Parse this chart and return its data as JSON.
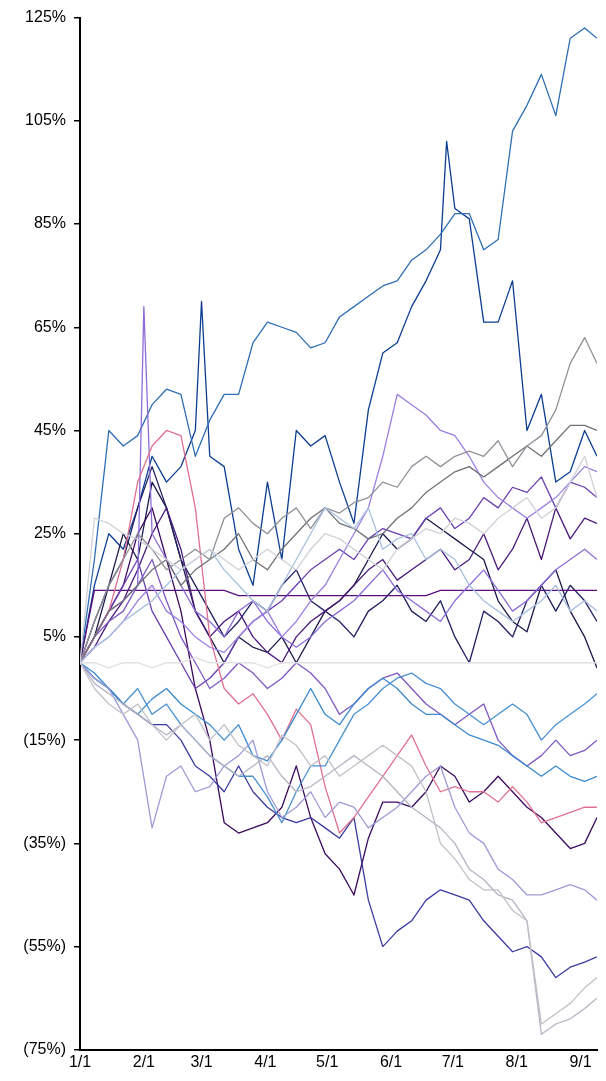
{
  "chart_data": {
    "type": "line",
    "x": [
      "--01-01",
      "--01-08",
      "--01-15",
      "--01-22",
      "--01-29",
      "--02-05",
      "--02-12",
      "--02-19",
      "--02-26",
      "--03-05",
      "--03-12",
      "--03-19",
      "--03-26",
      "--04-02",
      "--04-09",
      "--04-16",
      "--04-23",
      "--04-30",
      "--05-07",
      "--05-14",
      "--05-21",
      "--05-28",
      "--06-04",
      "--06-11",
      "--06-18",
      "--06-25",
      "--07-02",
      "--07-09",
      "--07-16",
      "--07-23",
      "--07-30",
      "--08-06",
      "--08-13",
      "--08-20",
      "--08-27",
      "--09-03",
      "--09-09"
    ],
    "xlim": [
      "--01-01",
      "--09-09"
    ],
    "xticks": [
      {
        "value": "--01-01",
        "label": "1/1"
      },
      {
        "value": "--02-01",
        "label": "2/1"
      },
      {
        "value": "--03-01",
        "label": "3/1"
      },
      {
        "value": "--04-01",
        "label": "4/1"
      },
      {
        "value": "--05-01",
        "label": "5/1"
      },
      {
        "value": "--06-01",
        "label": "6/1"
      },
      {
        "value": "--07-01",
        "label": "7/1"
      },
      {
        "value": "--08-01",
        "label": "8/1"
      },
      {
        "value": "--09-01",
        "label": "9/1"
      }
    ],
    "ylim": [
      -75,
      125
    ],
    "yticks": [
      {
        "value": -75,
        "label": "(75%)"
      },
      {
        "value": -55,
        "label": "(55%)"
      },
      {
        "value": -35,
        "label": "(35%)"
      },
      {
        "value": -15,
        "label": "(15%)"
      },
      {
        "value": 5,
        "label": "5%"
      },
      {
        "value": 25,
        "label": "25%"
      },
      {
        "value": 45,
        "label": "45%"
      },
      {
        "value": 65,
        "label": "65%"
      },
      {
        "value": 85,
        "label": "85%"
      },
      {
        "value": 105,
        "label": "105%"
      },
      {
        "value": 125,
        "label": "125%"
      }
    ],
    "series": [
      {
        "color": "#e2e2e6",
        "values": [
          0,
          0,
          -1,
          0,
          0,
          -1,
          0,
          0,
          1,
          0,
          0,
          0,
          0,
          -1,
          0,
          0,
          0,
          0,
          0,
          0,
          0,
          0,
          0,
          0,
          0,
          0,
          0,
          0,
          0,
          0,
          0,
          0,
          0,
          0,
          0,
          0,
          0
        ]
      },
      {
        "color": "#d0d0d8",
        "values": [
          0,
          28,
          27,
          25,
          24,
          22,
          20,
          18,
          20,
          22,
          20,
          18,
          20,
          22,
          20,
          18,
          22,
          25,
          24,
          22,
          20,
          18,
          22,
          24,
          26,
          25,
          28,
          27,
          25,
          28,
          30,
          32,
          28,
          30,
          35,
          40,
          32
        ]
      },
      {
        "color": "#c0c0c8",
        "values": [
          0,
          -5,
          -8,
          -10,
          -8,
          -12,
          -15,
          -12,
          -10,
          -15,
          -12,
          -16,
          -18,
          -20,
          -14,
          -16,
          -20,
          -18,
          -22,
          -20,
          -18,
          -16,
          -18,
          -20,
          -25,
          -35,
          -38,
          -42,
          -44,
          -44,
          -48,
          -50,
          -70,
          -68,
          -66,
          -63,
          -61
        ]
      },
      {
        "color": "#b4b4c4",
        "values": [
          0,
          -4,
          -6,
          -8,
          -10,
          -12,
          -14,
          -12,
          -15,
          -18,
          -20,
          -22,
          -20,
          -18,
          -22,
          -25,
          -24,
          -22,
          -20,
          -18,
          -20,
          -22,
          -25,
          -28,
          -30,
          -32,
          -35,
          -40,
          -42,
          -45,
          -46,
          -50,
          -72,
          -70,
          -69,
          -67,
          -65
        ]
      },
      {
        "color": "#a8c0e0",
        "values": [
          0,
          3,
          5,
          8,
          10,
          12,
          15,
          18,
          20,
          22,
          18,
          15,
          12,
          10,
          15,
          20,
          25,
          30,
          28,
          26,
          30,
          22,
          24,
          25,
          20,
          22,
          20,
          15,
          12,
          10,
          8,
          10,
          12,
          15,
          10,
          12,
          10
        ]
      },
      {
        "color": "#9d9bd6",
        "values": [
          0,
          -3,
          -5,
          -10,
          -15,
          -32,
          -22,
          -20,
          -25,
          -24,
          -20,
          -18,
          -15,
          -25,
          -30,
          -28,
          -25,
          -30,
          -27,
          -28,
          -32,
          -30,
          -28,
          -25,
          -22,
          -20,
          -28,
          -33,
          -35,
          -40,
          -42,
          -45,
          -45,
          -44,
          -43,
          -44,
          -46
        ]
      },
      {
        "color": "#909098",
        "values": [
          0,
          8,
          15,
          20,
          25,
          22,
          18,
          20,
          22,
          20,
          28,
          30,
          27,
          25,
          28,
          30,
          26,
          30,
          29,
          31,
          32,
          35,
          34,
          38,
          40,
          38,
          40,
          41,
          40,
          43,
          38,
          42,
          44,
          49,
          58,
          63,
          58
        ]
      },
      {
        "color": "#707078",
        "values": [
          0,
          5,
          10,
          12,
          15,
          18,
          20,
          15,
          18,
          20,
          22,
          25,
          20,
          18,
          22,
          25,
          28,
          30,
          27,
          26,
          24,
          25,
          28,
          30,
          33,
          35,
          37,
          38,
          36,
          38,
          40,
          42,
          40,
          43,
          46,
          46,
          45
        ]
      },
      {
        "color": "#9b7fe0",
        "values": [
          0,
          3,
          5,
          8,
          12,
          15,
          10,
          8,
          5,
          3,
          2,
          5,
          8,
          10,
          5,
          8,
          12,
          15,
          20,
          25,
          30,
          40,
          52,
          50,
          48,
          45,
          44,
          40,
          35,
          32,
          30,
          28,
          30,
          32,
          35,
          38,
          37
        ]
      },
      {
        "color": "#3a8ad0",
        "values": [
          0,
          -2,
          -5,
          -8,
          -10,
          -7,
          -5,
          -8,
          -10,
          -12,
          -15,
          -12,
          -18,
          -19,
          -15,
          -10,
          -5,
          -10,
          -12,
          -8,
          -5,
          -3,
          -5,
          -8,
          -10,
          -10,
          -12,
          -14,
          -15,
          -16,
          -18,
          -20,
          -22,
          -20,
          -22,
          -23,
          -22
        ]
      },
      {
        "color": "#4a90d0",
        "values": [
          0,
          -3,
          -5,
          -8,
          -5,
          -10,
          -8,
          -12,
          -15,
          -18,
          -20,
          -22,
          -22,
          -26,
          -31,
          -25,
          -20,
          -20,
          -15,
          -10,
          -8,
          -5,
          -3,
          -2,
          -4,
          -5,
          -8,
          -10,
          -12,
          -10,
          -8,
          -10,
          -15,
          -12,
          -10,
          -8,
          -6
        ]
      },
      {
        "color": "#e07090",
        "values": [
          0,
          5,
          10,
          20,
          35,
          42,
          45,
          44,
          30,
          5,
          -5,
          -8,
          -6,
          -10,
          -15,
          -9,
          -12,
          -24,
          -33,
          -30,
          -26,
          -22,
          -18,
          -14,
          -20,
          -25,
          -24,
          -25,
          -25,
          -27,
          -24,
          -27,
          -31,
          -30,
          -29,
          -28,
          -28
        ]
      },
      {
        "color": "#7e57c2",
        "values": [
          0,
          5,
          8,
          10,
          15,
          20,
          12,
          5,
          0,
          -5,
          -3,
          0,
          -2,
          -5,
          -3,
          0,
          -2,
          -5,
          -10,
          -8,
          -5,
          -3,
          -2,
          -5,
          -8,
          -10,
          -12,
          -10,
          -8,
          -15,
          -18,
          -20,
          -18,
          -15,
          -18,
          -17,
          -15
        ]
      },
      {
        "color": "#8e6cd8",
        "x": [
          "--01-01",
          "--01-08",
          "--01-15",
          "--01-22",
          "--01-29",
          "--02-01",
          "--02-05",
          "--02-12",
          "--02-19",
          "--02-26",
          "--03-05",
          "--03-12",
          "--03-19",
          "--03-26",
          "--04-02",
          "--04-09",
          "--04-16",
          "--04-23",
          "--04-30",
          "--05-07",
          "--05-14",
          "--05-21",
          "--05-28",
          "--06-04",
          "--06-11",
          "--06-18",
          "--06-25",
          "--07-02",
          "--07-09",
          "--07-16",
          "--07-23",
          "--07-30",
          "--08-06",
          "--08-13",
          "--08-20",
          "--08-27",
          "--09-03",
          "--09-09"
        ],
        "values": [
          0,
          5,
          10,
          12,
          15,
          69,
          25,
          20,
          15,
          10,
          8,
          5,
          10,
          12,
          8,
          5,
          3,
          5,
          8,
          10,
          12,
          15,
          18,
          14,
          12,
          10,
          8,
          12,
          15,
          18,
          14,
          10,
          12,
          15,
          18,
          20,
          22,
          20
        ]
      },
      {
        "color": "#6a3fb0",
        "values": [
          0,
          5,
          10,
          15,
          20,
          10,
          5,
          0,
          -5,
          -3,
          0,
          5,
          8,
          10,
          12,
          15,
          18,
          20,
          22,
          20,
          24,
          26,
          25,
          24,
          28,
          30,
          26,
          28,
          32,
          30,
          34,
          33,
          36,
          30,
          35,
          34,
          32
        ]
      },
      {
        "color": "#4b1a7a",
        "values": [
          0,
          3,
          8,
          12,
          18,
          25,
          30,
          22,
          10,
          5,
          8,
          10,
          5,
          2,
          0,
          5,
          8,
          10,
          12,
          15,
          18,
          20,
          16,
          18,
          20,
          22,
          18,
          20,
          25,
          18,
          22,
          28,
          20,
          30,
          24,
          28,
          27
        ]
      },
      {
        "color": "#5a0f7a",
        "values": [
          0,
          14,
          14,
          14,
          14,
          14,
          14,
          14,
          14,
          14,
          14,
          13,
          13,
          13,
          13,
          13,
          13,
          13,
          13,
          13,
          13,
          13,
          13,
          13,
          13,
          14,
          14,
          14,
          14,
          14,
          14,
          14,
          14,
          14,
          14,
          14,
          14
        ]
      },
      {
        "color": "#3a3aa0",
        "values": [
          0,
          -3,
          -5,
          -8,
          -10,
          -12,
          -12,
          -15,
          -20,
          -22,
          -25,
          -20,
          -25,
          -28,
          -30,
          -31,
          -30,
          -32,
          -34,
          -30,
          -46,
          -55,
          -52,
          -50,
          -46,
          -44,
          -45,
          -46,
          -50,
          -53,
          -56,
          -55,
          -57,
          -61,
          -59,
          -58,
          -57
        ]
      },
      {
        "color": "#3b0a5e",
        "values": [
          0,
          5,
          10,
          15,
          25,
          30,
          20,
          10,
          -5,
          -15,
          -31,
          -33,
          -32,
          -31,
          -28,
          -20,
          -30,
          -37,
          -40,
          -45,
          -34,
          -27,
          -27,
          -28,
          -25,
          -20,
          -22,
          -27,
          -25,
          -22,
          -25,
          -28,
          -30,
          -33,
          -36,
          -35,
          -30
        ]
      },
      {
        "color": "#202060",
        "values": [
          0,
          8,
          15,
          20,
          30,
          38,
          30,
          20,
          15,
          10,
          5,
          8,
          12,
          10,
          15,
          18,
          12,
          10,
          8,
          5,
          10,
          12,
          15,
          10,
          8,
          12,
          5,
          0,
          10,
          8,
          5,
          12,
          15,
          10,
          15,
          12,
          8
        ]
      },
      {
        "color": "#1a1a4a",
        "values": [
          0,
          5,
          15,
          25,
          20,
          35,
          30,
          20,
          10,
          5,
          0,
          5,
          3,
          2,
          5,
          0,
          5,
          10,
          12,
          15,
          20,
          25,
          22,
          24,
          28,
          26,
          24,
          22,
          20,
          12,
          8,
          6,
          15,
          18,
          10,
          5,
          -1
        ]
      },
      {
        "color": "#2f6eb5",
        "values": [
          0,
          20,
          45,
          42,
          44,
          50,
          53,
          52,
          40,
          47,
          52,
          52,
          62,
          66,
          65,
          64,
          61,
          62,
          67,
          69,
          71,
          73,
          74,
          78,
          80,
          83,
          87,
          87,
          80,
          82,
          103,
          108,
          114,
          106,
          121,
          123,
          121
        ]
      },
      {
        "color": "#0b3d91",
        "x": [
          "--01-01",
          "--01-08",
          "--01-15",
          "--01-22",
          "--01-29",
          "--02-05",
          "--02-12",
          "--02-19",
          "--02-26",
          "--03-01",
          "--03-05",
          "--03-12",
          "--03-19",
          "--03-26",
          "--04-02",
          "--04-09",
          "--04-16",
          "--04-23",
          "--04-30",
          "--05-07",
          "--05-14",
          "--05-21",
          "--05-28",
          "--06-04",
          "--06-11",
          "--06-18",
          "--06-25",
          "--06-28",
          "--07-02",
          "--07-09",
          "--07-16",
          "--07-23",
          "--07-30",
          "--08-06",
          "--08-13",
          "--08-20",
          "--08-27",
          "--09-03",
          "--09-09"
        ],
        "values": [
          0,
          15,
          25,
          22,
          30,
          40,
          35,
          38,
          45,
          70,
          40,
          38,
          22,
          15,
          35,
          20,
          45,
          42,
          44,
          35,
          27,
          49,
          60,
          62,
          69,
          74,
          80,
          101,
          88,
          86,
          66,
          66,
          74,
          45,
          52,
          35,
          37,
          45,
          40
        ]
      }
    ]
  }
}
